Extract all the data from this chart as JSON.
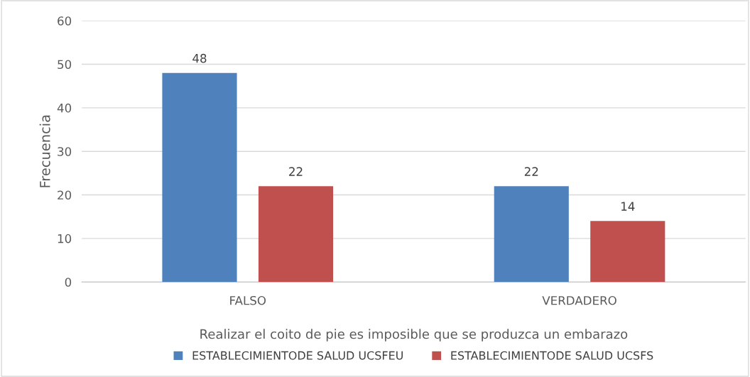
{
  "chart_data": {
    "type": "bar",
    "xlabel": "Realizar el coito de pie es imposible que se produzca un embarazo",
    "ylabel": "Frecuencia",
    "categories": [
      "FALSO",
      "VERDADERO"
    ],
    "series": [
      {
        "name": "ESTABLECIMIENTODE SALUD UCSFEU",
        "color": "#4f81bd",
        "values": [
          48,
          22
        ]
      },
      {
        "name": "ESTABLECIMIENTODE SALUD UCSFS",
        "color": "#c0504d",
        "values": [
          22,
          14
        ]
      }
    ],
    "ylim": [
      0,
      60
    ],
    "yticks": [
      0,
      10,
      20,
      30,
      40,
      50,
      60
    ],
    "grid": "y",
    "data_labels": true,
    "legend": "bottom"
  }
}
